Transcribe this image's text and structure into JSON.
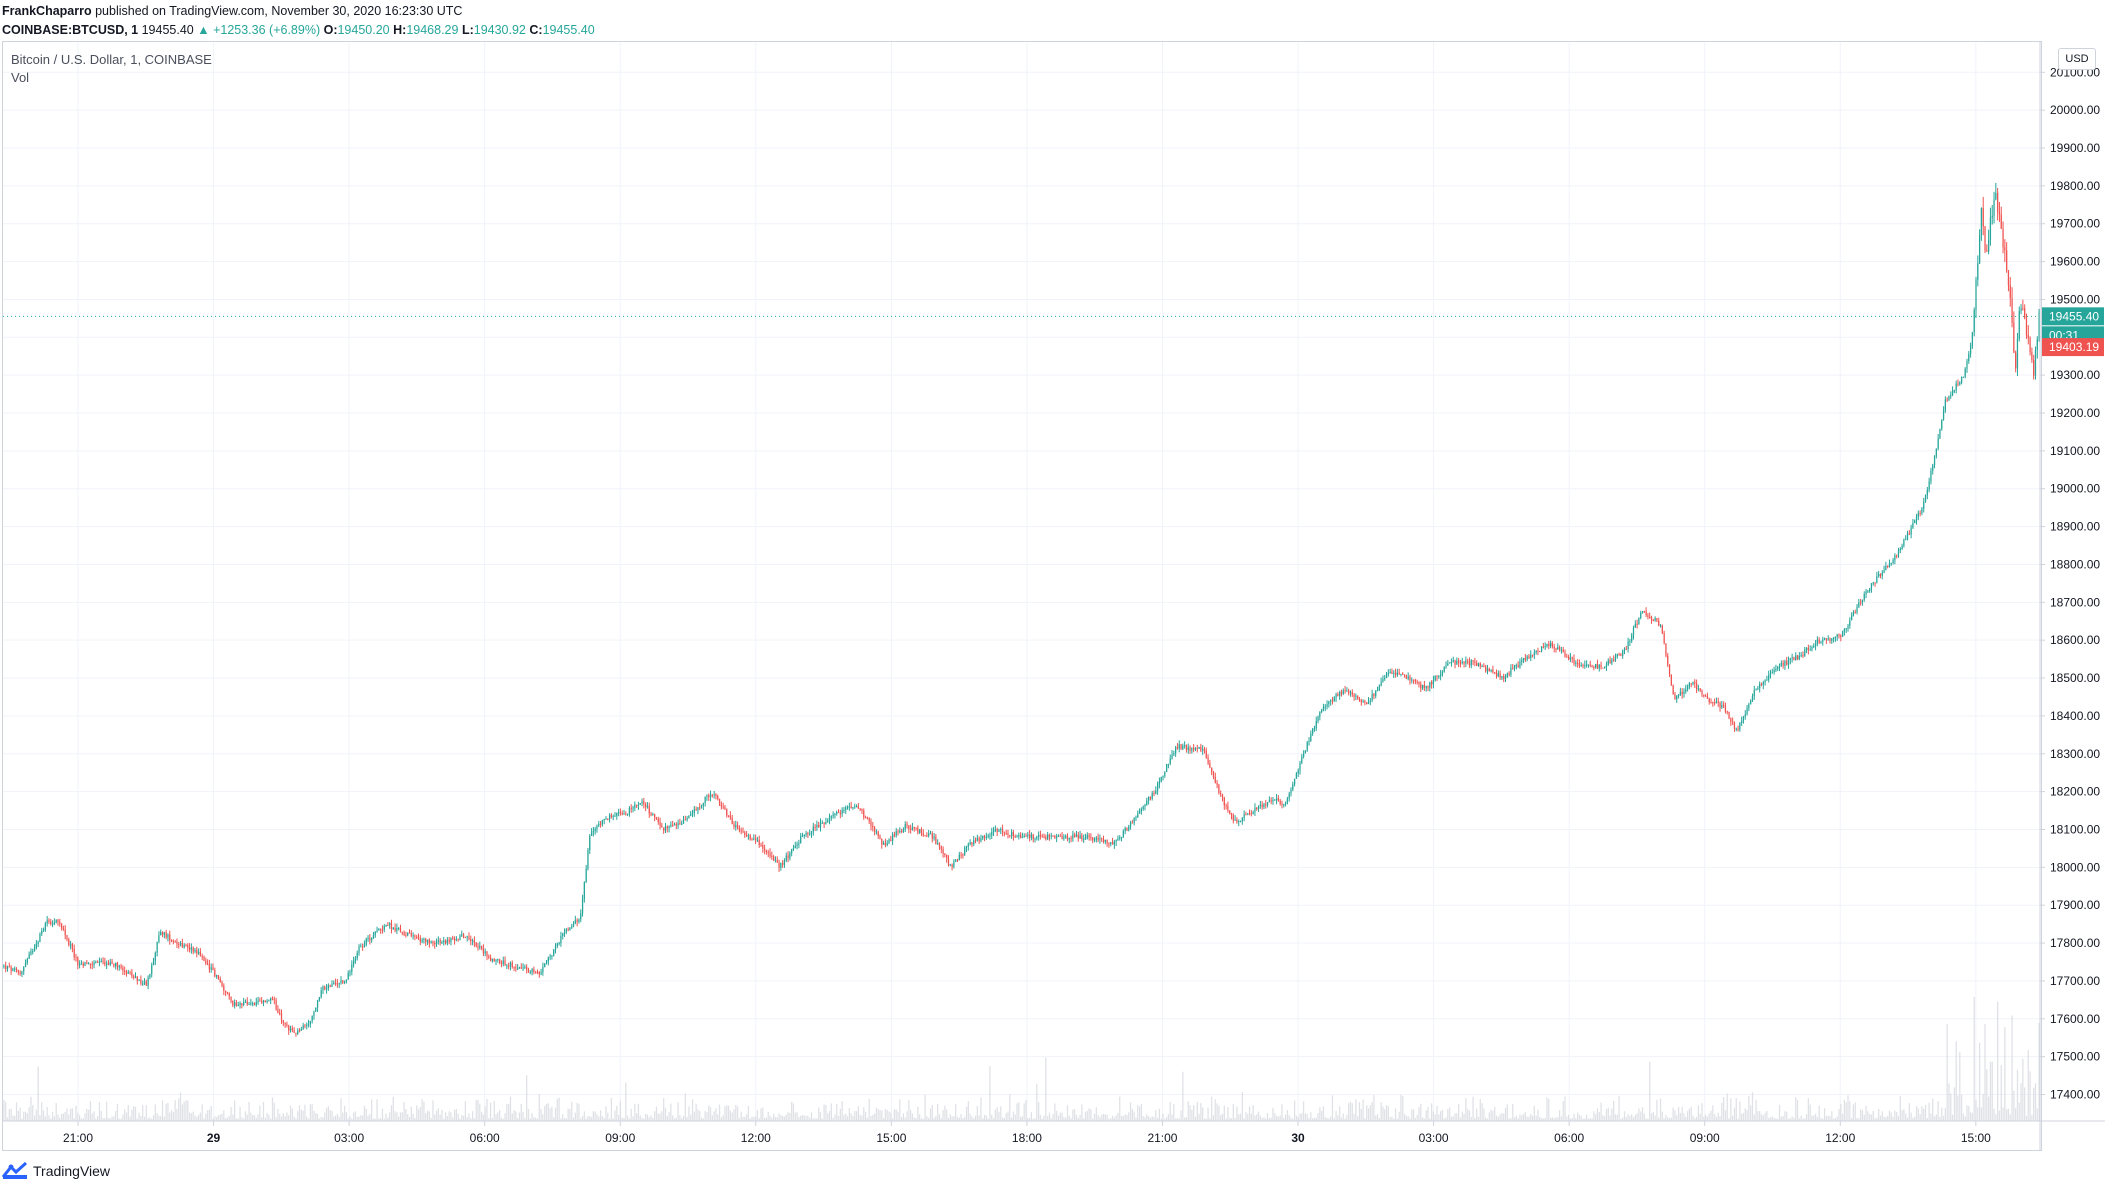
{
  "header": {
    "line1": {
      "author": "FrankChaparro",
      "rest": " published on TradingView.com, November 30, 2020 16:23:30 UTC"
    },
    "line2": {
      "symbol": "COINBASE:BTCUSD, 1",
      "price": "19455.40",
      "change": "▲ +1253.36 (+6.89%)",
      "o_label": "O:",
      "o_val": "19450.20",
      "h_label": "H:",
      "h_val": "19468.29",
      "l_label": "L:",
      "l_val": "19430.92",
      "c_label": "C:",
      "c_val": "19455.40"
    }
  },
  "legend": {
    "series_title": "Bitcoin / U.S. Dollar, 1, COINBASE",
    "volume_label": "Vol"
  },
  "price_scale": {
    "currency": "USD",
    "last_price_label": "19455.40",
    "countdown_label": "00:31",
    "red_label": "19403.19"
  },
  "footer": {
    "brand": "TradingView"
  },
  "colors": {
    "up": "#26a69a",
    "down": "#ef5350",
    "grid": "#f0f3fa",
    "axis_text": "#131722",
    "volume": "#d1d4dc"
  },
  "chart_data": {
    "type": "candlestick",
    "title": "Bitcoin / U.S. Dollar, 1, COINBASE",
    "ylim": [
      17330,
      20180
    ],
    "y_ticks": [
      17400,
      17500,
      17600,
      17700,
      17800,
      17900,
      18000,
      18100,
      18200,
      18300,
      18400,
      18500,
      18600,
      18700,
      18800,
      18900,
      19000,
      19100,
      19200,
      19300,
      19400,
      19500,
      19600,
      19700,
      19800,
      19900,
      20000,
      20100
    ],
    "x_tick_labels": [
      "21:00",
      "29",
      "03:00",
      "06:00",
      "09:00",
      "12:00",
      "15:00",
      "18:00",
      "21:00",
      "30",
      "03:00",
      "06:00",
      "09:00",
      "12:00",
      "15:00"
    ],
    "x_tick_hours": [
      1.66,
      4.66,
      7.66,
      10.66,
      13.66,
      16.66,
      19.66,
      22.66,
      25.66,
      28.66,
      31.66,
      34.66,
      37.66,
      40.66,
      43.66
    ],
    "x_range_hours": [
      0,
      45.08
    ],
    "bold_tick_labels": [
      "29",
      "30"
    ],
    "anchors": [
      [
        0.0,
        17740
      ],
      [
        0.4,
        17720
      ],
      [
        0.8,
        17810
      ],
      [
        1.0,
        17860
      ],
      [
        1.3,
        17850
      ],
      [
        1.7,
        17740
      ],
      [
        2.2,
        17750
      ],
      [
        2.6,
        17740
      ],
      [
        3.0,
        17700
      ],
      [
        3.2,
        17690
      ],
      [
        3.5,
        17830
      ],
      [
        3.9,
        17800
      ],
      [
        4.3,
        17780
      ],
      [
        4.7,
        17720
      ],
      [
        5.1,
        17640
      ],
      [
        5.6,
        17640
      ],
      [
        6.0,
        17650
      ],
      [
        6.2,
        17590
      ],
      [
        6.5,
        17560
      ],
      [
        6.8,
        17590
      ],
      [
        7.1,
        17680
      ],
      [
        7.6,
        17700
      ],
      [
        7.9,
        17790
      ],
      [
        8.5,
        17850
      ],
      [
        9.2,
        17810
      ],
      [
        9.7,
        17800
      ],
      [
        10.3,
        17820
      ],
      [
        10.8,
        17760
      ],
      [
        11.3,
        17740
      ],
      [
        11.9,
        17720
      ],
      [
        12.4,
        17820
      ],
      [
        12.8,
        17870
      ],
      [
        13.0,
        18080
      ],
      [
        13.3,
        18130
      ],
      [
        13.7,
        18140
      ],
      [
        14.2,
        18170
      ],
      [
        14.6,
        18100
      ],
      [
        15.2,
        18130
      ],
      [
        15.7,
        18200
      ],
      [
        16.2,
        18110
      ],
      [
        16.8,
        18060
      ],
      [
        17.2,
        18000
      ],
      [
        17.7,
        18080
      ],
      [
        18.3,
        18130
      ],
      [
        18.9,
        18170
      ],
      [
        19.5,
        18060
      ],
      [
        20.0,
        18110
      ],
      [
        20.6,
        18080
      ],
      [
        21.0,
        18000
      ],
      [
        21.4,
        18060
      ],
      [
        22.0,
        18100
      ],
      [
        22.6,
        18080
      ],
      [
        23.3,
        18080
      ],
      [
        24.0,
        18080
      ],
      [
        24.6,
        18060
      ],
      [
        25.0,
        18120
      ],
      [
        25.5,
        18200
      ],
      [
        26.0,
        18320
      ],
      [
        26.6,
        18310
      ],
      [
        27.0,
        18180
      ],
      [
        27.3,
        18120
      ],
      [
        27.7,
        18150
      ],
      [
        28.1,
        18180
      ],
      [
        28.4,
        18170
      ],
      [
        28.8,
        18300
      ],
      [
        29.2,
        18420
      ],
      [
        29.7,
        18470
      ],
      [
        30.2,
        18430
      ],
      [
        30.7,
        18520
      ],
      [
        31.1,
        18500
      ],
      [
        31.5,
        18470
      ],
      [
        32.0,
        18540
      ],
      [
        32.6,
        18540
      ],
      [
        33.2,
        18500
      ],
      [
        33.8,
        18560
      ],
      [
        34.3,
        18590
      ],
      [
        34.9,
        18530
      ],
      [
        35.4,
        18530
      ],
      [
        35.9,
        18570
      ],
      [
        36.3,
        18680
      ],
      [
        36.7,
        18640
      ],
      [
        37.0,
        18440
      ],
      [
        37.4,
        18490
      ],
      [
        37.8,
        18440
      ],
      [
        38.1,
        18420
      ],
      [
        38.4,
        18360
      ],
      [
        38.8,
        18470
      ],
      [
        39.3,
        18530
      ],
      [
        39.8,
        18560
      ],
      [
        40.2,
        18600
      ],
      [
        40.7,
        18610
      ],
      [
        41.1,
        18700
      ],
      [
        41.6,
        18780
      ],
      [
        42.0,
        18840
      ],
      [
        42.5,
        18950
      ],
      [
        42.8,
        19100
      ],
      [
        43.0,
        19230
      ],
      [
        43.4,
        19300
      ],
      [
        43.6,
        19400
      ],
      [
        43.8,
        19740
      ],
      [
        43.9,
        19620
      ],
      [
        44.1,
        19780
      ],
      [
        44.3,
        19640
      ],
      [
        44.45,
        19500
      ],
      [
        44.55,
        19300
      ],
      [
        44.65,
        19500
      ],
      [
        44.8,
        19420
      ],
      [
        44.95,
        19300
      ],
      [
        45.08,
        19455.4
      ]
    ],
    "last_price": 19455.4,
    "red_label_price": 19403.19,
    "volume_ylim": [
      0,
      1
    ],
    "volume_axis": "bottom overlay"
  }
}
